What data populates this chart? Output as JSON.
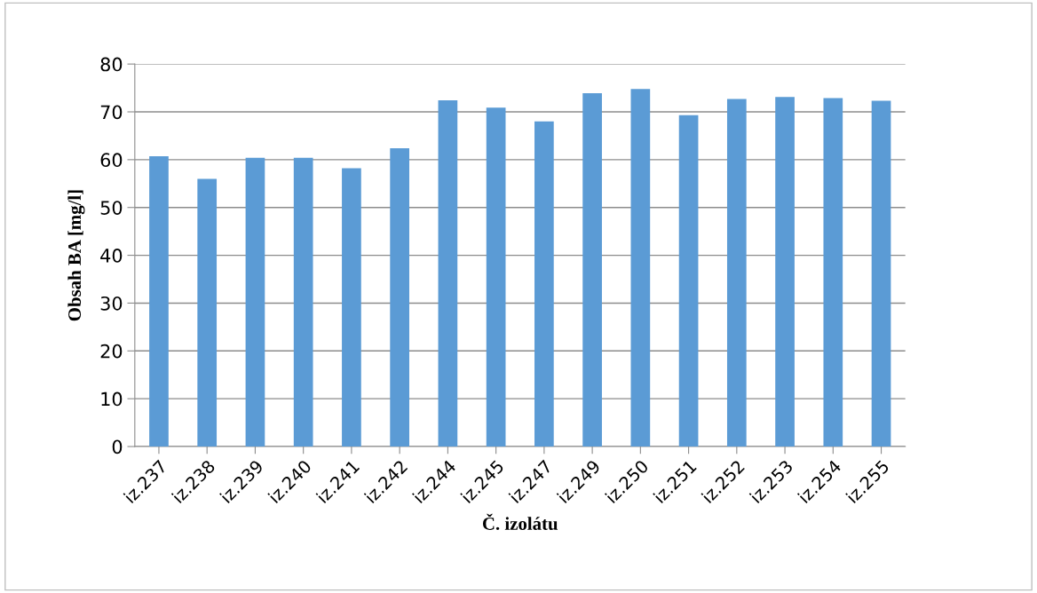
{
  "chart_data": {
    "type": "bar",
    "xlabel": "Č. izolátu",
    "ylabel": "Obsah BA [mg/l]",
    "categories": [
      "iz.237",
      "iz.238",
      "iz.239",
      "iz.240",
      "iz.241",
      "iz.242",
      "iz.244",
      "iz.245",
      "iz.247",
      "iz.249",
      "iz.250",
      "iz.251",
      "iz.252",
      "iz.253",
      "iz.254",
      "iz.255"
    ],
    "values": [
      60.7,
      56.0,
      60.4,
      60.4,
      58.2,
      62.4,
      72.4,
      70.9,
      68.0,
      73.9,
      74.8,
      69.3,
      72.7,
      73.1,
      72.9,
      72.3
    ],
    "color": "#5b9bd5",
    "ylim": [
      0,
      80
    ],
    "yticks": [
      0,
      10,
      20,
      30,
      40,
      50,
      60,
      70,
      80
    ],
    "grid": "y"
  }
}
